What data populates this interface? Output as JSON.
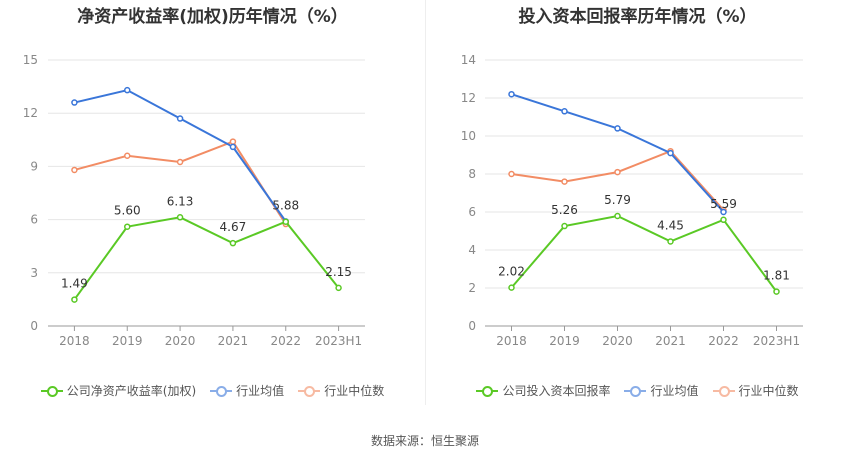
{
  "source": "数据来源：恒生聚源",
  "colors": {
    "company": "#5ac925",
    "avg": "#3a76d9",
    "median": "#f28c64"
  },
  "chart_data": [
    {
      "type": "line",
      "title": "净资产收益率(加权)历年情况（%）",
      "categories": [
        "2018",
        "2019",
        "2020",
        "2021",
        "2022",
        "2023H1"
      ],
      "ylim": [
        0,
        15
      ],
      "yticks": [
        0,
        3,
        6,
        9,
        12,
        15
      ],
      "grid": true,
      "legend_position": "bottom",
      "series": [
        {
          "name": "公司净资产收益率(加权)",
          "key": "company",
          "values": [
            1.49,
            5.6,
            6.13,
            4.67,
            5.88,
            2.15
          ],
          "labels": [
            "1.49",
            "5.60",
            "6.13",
            "4.67",
            "5.88",
            "2.15"
          ]
        },
        {
          "name": "行业均值",
          "key": "avg",
          "values": [
            12.6,
            13.3,
            11.7,
            10.1,
            5.9,
            null
          ]
        },
        {
          "name": "行业中位数",
          "key": "median",
          "values": [
            8.8,
            9.6,
            9.25,
            10.4,
            5.75,
            null
          ]
        }
      ]
    },
    {
      "type": "line",
      "title": "投入资本回报率历年情况（%）",
      "categories": [
        "2018",
        "2019",
        "2020",
        "2021",
        "2022",
        "2023H1"
      ],
      "ylim": [
        0,
        14
      ],
      "yticks": [
        0,
        2,
        4,
        6,
        8,
        10,
        12,
        14
      ],
      "grid": true,
      "legend_position": "bottom",
      "series": [
        {
          "name": "公司投入资本回报率",
          "key": "company",
          "values": [
            2.02,
            5.26,
            5.79,
            4.45,
            5.59,
            1.81
          ],
          "labels": [
            "2.02",
            "5.26",
            "5.79",
            "4.45",
            "5.59",
            "1.81"
          ]
        },
        {
          "name": "行业均值",
          "key": "avg",
          "values": [
            12.2,
            11.3,
            10.4,
            9.1,
            6.0,
            null
          ]
        },
        {
          "name": "行业中位数",
          "key": "median",
          "values": [
            8.0,
            7.6,
            8.1,
            9.2,
            6.1,
            null
          ]
        }
      ]
    }
  ]
}
